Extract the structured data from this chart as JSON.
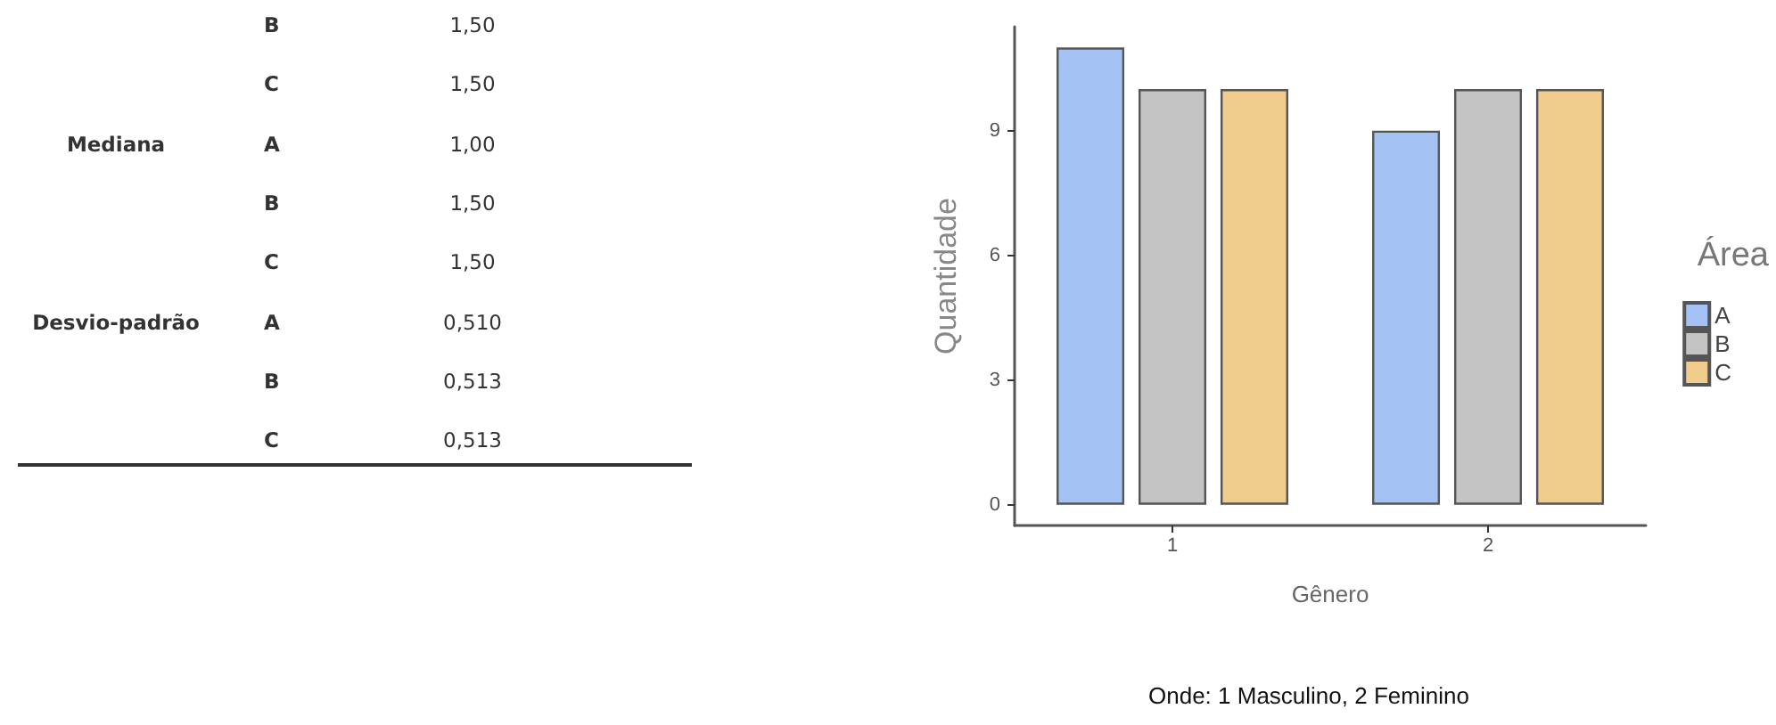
{
  "chart_data": [
    {
      "type": "other",
      "annotations": [
        null,
        "B",
        "1,50",
        null,
        "C",
        "1,50",
        "Mediana",
        "A",
        "1,00",
        null,
        "B",
        "1,50",
        null,
        "C",
        "1,50",
        "Desvio-padrão",
        "A",
        "0,510",
        null,
        "B",
        "0,513",
        null,
        "C",
        "0,513"
      ]
    },
    {
      "type": "bar",
      "xlabel": "Gênero",
      "ylabel": "Quantidade",
      "legend_title": "Área",
      "categories": [
        "1",
        "2"
      ],
      "series": [
        {
          "name": "A",
          "color": "#a4c2f4",
          "values": [
            11,
            9
          ]
        },
        {
          "name": "B",
          "color": "#c4c4c4",
          "values": [
            10,
            10
          ]
        },
        {
          "name": "C",
          "color": "#f0cd8c",
          "values": [
            10,
            10
          ]
        }
      ],
      "ylim": [
        -0.5,
        11.5
      ],
      "yticks": [
        0,
        3,
        6,
        9
      ],
      "grid": false,
      "legend": "right",
      "annotations": [
        "Onde: 1 Masculino, 2 Feminino"
      ]
    }
  ]
}
